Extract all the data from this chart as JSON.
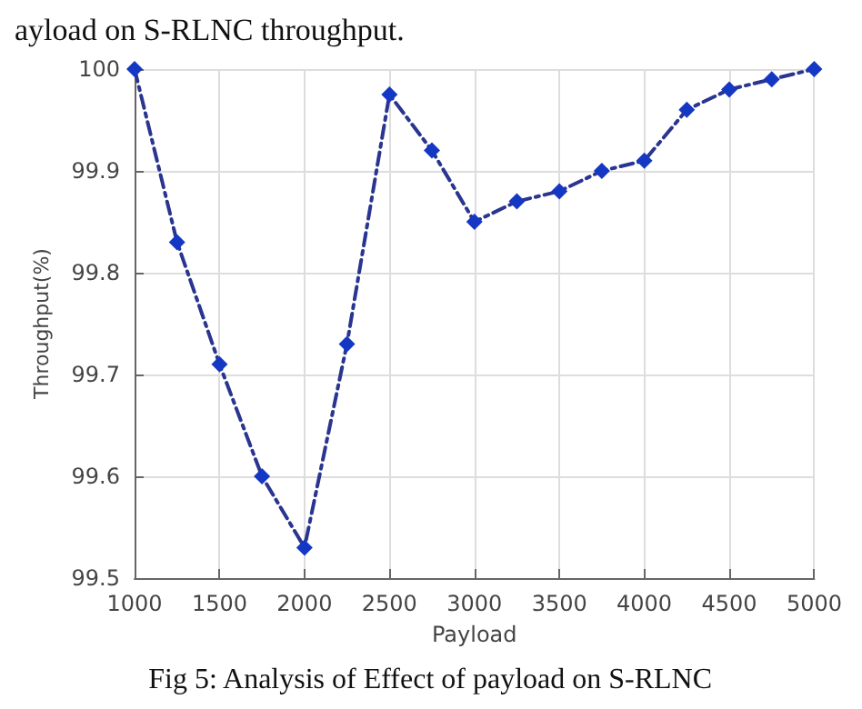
{
  "chart_data": {
    "type": "line",
    "xlabel": "Payload",
    "ylabel": "Throughput(%)",
    "annotations": [
      "ayload on S-RLNC throughput.",
      "Fig 5: Analysis of Effect of payload on S-RLNC"
    ],
    "x": [
      1000,
      1250,
      1500,
      1750,
      2000,
      2250,
      2500,
      2750,
      3000,
      3250,
      3500,
      3750,
      4000,
      4250,
      4500,
      4750,
      5000
    ],
    "series": [
      {
        "color": "#1538c4",
        "values": [
          100,
          99.83,
          99.71,
          99.6,
          99.53,
          99.73,
          99.975,
          99.92,
          99.85,
          99.87,
          99.88,
          99.9,
          99.91,
          99.96,
          99.98,
          99.99,
          100
        ]
      }
    ],
    "xlim": [
      1000,
      5000
    ],
    "xticks": [
      1000,
      1500,
      2000,
      2500,
      3000,
      3500,
      4000,
      4500,
      5000
    ],
    "ylim": [
      99.5,
      100
    ],
    "yticks": [
      99.5,
      99.6,
      99.7,
      99.8,
      99.9,
      100
    ],
    "grid": true,
    "marker": "diamond",
    "line_style": "dashed"
  }
}
